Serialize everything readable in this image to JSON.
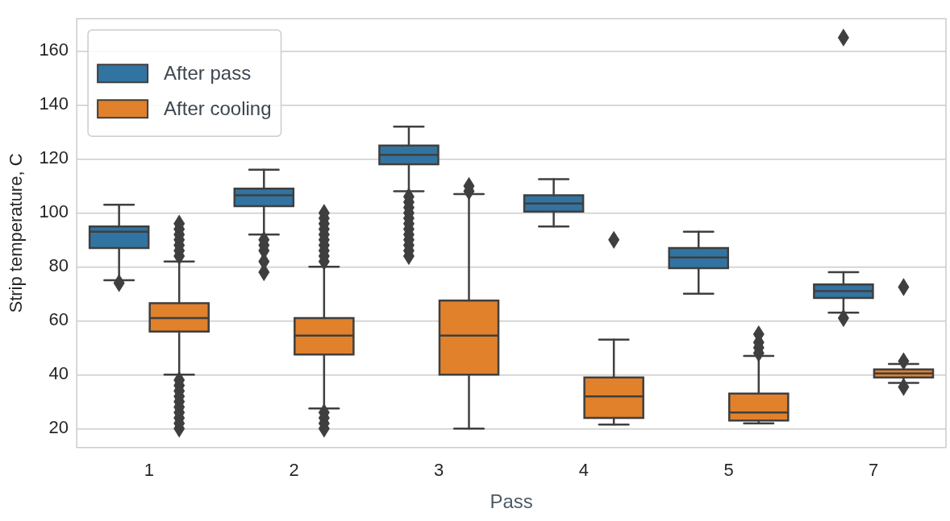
{
  "chart_data": {
    "type": "box",
    "xlabel": "Pass",
    "ylabel": "Strip temperature, C",
    "categories": [
      "1",
      "2",
      "3",
      "4",
      "5",
      "7"
    ],
    "ylim": [
      13,
      172
    ],
    "yticks": [
      20,
      40,
      60,
      80,
      100,
      120,
      140,
      160
    ],
    "grid": "y",
    "legend": "top left",
    "series": [
      {
        "name": "After pass",
        "color": "#3274a1",
        "boxes": [
          {
            "low": 75,
            "q1": 87,
            "median": 93,
            "q3": 95,
            "high": 103,
            "outliers": [
              74
            ]
          },
          {
            "low": 92,
            "q1": 102.5,
            "median": 106.5,
            "q3": 109,
            "high": 116,
            "outliers": [
              78,
              82,
              86,
              88,
              90
            ]
          },
          {
            "low": 108,
            "q1": 118,
            "median": 121.5,
            "q3": 125,
            "high": 132,
            "outliers": [
              84,
              86,
              88,
              90,
              92,
              94,
              96,
              98,
              100,
              102,
              104,
              106
            ]
          },
          {
            "low": 95,
            "q1": 100.5,
            "median": 103.5,
            "q3": 106.5,
            "high": 112.5
          },
          {
            "low": 70,
            "q1": 79.5,
            "median": 83.5,
            "q3": 87,
            "high": 93
          },
          {
            "low": 63,
            "q1": 68.5,
            "median": 71,
            "q3": 73.5,
            "high": 78,
            "outliers": [
              61,
              165
            ]
          }
        ]
      },
      {
        "name": "After cooling",
        "color": "#e1812c",
        "boxes": [
          {
            "low": 40,
            "q1": 56,
            "median": 61,
            "q3": 66.5,
            "high": 82,
            "outliers": [
              20,
              22,
              24,
              26,
              28,
              30,
              32,
              34,
              36,
              38,
              84,
              86,
              88,
              90,
              92,
              94,
              96
            ]
          },
          {
            "low": 27.5,
            "q1": 47.5,
            "median": 54.5,
            "q3": 61,
            "high": 80,
            "outliers": [
              20,
              22,
              24,
              26,
              82,
              84,
              86,
              88,
              90,
              92,
              94,
              96,
              98,
              100
            ]
          },
          {
            "low": 20,
            "q1": 40,
            "median": 54.5,
            "q3": 67.5,
            "high": 107,
            "outliers": [
              108,
              110
            ]
          },
          {
            "low": 21.5,
            "q1": 24,
            "median": 32,
            "q3": 39,
            "high": 53,
            "outliers": [
              90
            ]
          },
          {
            "low": 22,
            "q1": 23,
            "median": 26,
            "q3": 33,
            "high": 47,
            "outliers": [
              48,
              50,
              52,
              55
            ]
          },
          {
            "low": 37,
            "q1": 39,
            "median": 40.5,
            "q3": 42,
            "high": 44,
            "outliers": [
              35.5,
              45,
              72.5
            ]
          }
        ]
      }
    ]
  }
}
